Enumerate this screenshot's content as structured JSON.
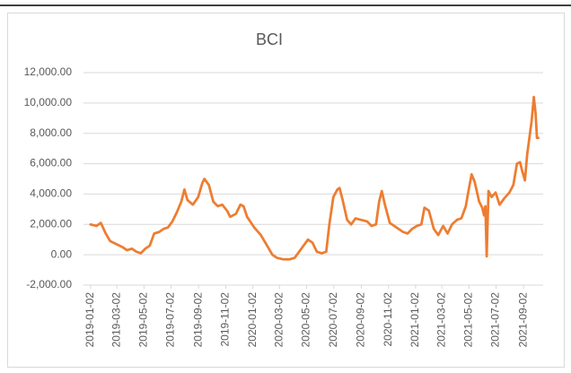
{
  "chart_data": {
    "type": "line",
    "title": "BCI",
    "x": [
      "2019-01-02",
      "2019-01-15",
      "2019-01-25",
      "2019-02-05",
      "2019-02-15",
      "2019-03-01",
      "2019-03-15",
      "2019-03-25",
      "2019-04-05",
      "2019-04-15",
      "2019-04-25",
      "2019-05-05",
      "2019-05-15",
      "2019-05-25",
      "2019-06-05",
      "2019-06-15",
      "2019-06-25",
      "2019-07-05",
      "2019-07-15",
      "2019-07-25",
      "2019-08-01",
      "2019-08-08",
      "2019-08-20",
      "2019-09-01",
      "2019-09-10",
      "2019-09-15",
      "2019-09-25",
      "2019-10-05",
      "2019-10-15",
      "2019-10-25",
      "2019-11-05",
      "2019-11-12",
      "2019-11-25",
      "2019-12-05",
      "2019-12-12",
      "2019-12-20",
      "2020-01-05",
      "2020-01-20",
      "2020-02-05",
      "2020-02-15",
      "2020-02-25",
      "2020-03-10",
      "2020-03-25",
      "2020-04-05",
      "2020-04-15",
      "2020-04-25",
      "2020-05-05",
      "2020-05-15",
      "2020-05-25",
      "2020-06-05",
      "2020-06-15",
      "2020-06-22",
      "2020-07-01",
      "2020-07-10",
      "2020-07-15",
      "2020-07-22",
      "2020-08-01",
      "2020-08-10",
      "2020-08-20",
      "2020-09-01",
      "2020-09-15",
      "2020-09-25",
      "2020-10-05",
      "2020-10-12",
      "2020-10-18",
      "2020-10-25",
      "2020-11-05",
      "2020-11-15",
      "2020-11-25",
      "2020-12-05",
      "2020-12-15",
      "2020-12-25",
      "2021-01-05",
      "2021-01-15",
      "2021-01-22",
      "2021-02-01",
      "2021-02-12",
      "2021-02-22",
      "2021-03-05",
      "2021-03-15",
      "2021-03-25",
      "2021-04-05",
      "2021-04-15",
      "2021-04-25",
      "2021-05-01",
      "2021-05-08",
      "2021-05-15",
      "2021-05-25",
      "2021-06-01",
      "2021-06-05",
      "2021-06-08",
      "2021-06-11",
      "2021-06-15",
      "2021-06-22",
      "2021-07-01",
      "2021-07-10",
      "2021-07-20",
      "2021-08-01",
      "2021-08-10",
      "2021-08-18",
      "2021-08-25",
      "2021-08-30",
      "2021-09-05",
      "2021-09-10",
      "2021-09-20",
      "2021-09-25",
      "2021-09-29",
      "2021-10-02",
      "2021-10-05"
    ],
    "series": [
      {
        "name": "BCI",
        "color": "#ed7d31",
        "values": [
          2000,
          1900,
          2100,
          1400,
          900,
          700,
          500,
          300,
          400,
          200,
          100,
          400,
          600,
          1400,
          1500,
          1700,
          1800,
          2200,
          2800,
          3500,
          4300,
          3600,
          3300,
          3800,
          4700,
          5000,
          4600,
          3500,
          3200,
          3300,
          2900,
          2500,
          2700,
          3300,
          3200,
          2500,
          1800,
          1300,
          500,
          0,
          -200,
          -300,
          -300,
          -200,
          200,
          600,
          1000,
          800,
          200,
          100,
          200,
          2000,
          3800,
          4300,
          4400,
          3600,
          2300,
          2000,
          2400,
          2300,
          2200,
          1900,
          2000,
          3500,
          4200,
          3300,
          2100,
          1900,
          1700,
          1500,
          1400,
          1700,
          1900,
          2000,
          3100,
          2900,
          1700,
          1300,
          1900,
          1400,
          2000,
          2300,
          2400,
          3200,
          4200,
          5300,
          4800,
          3500,
          3100,
          2600,
          3200,
          -100,
          4200,
          3800,
          4100,
          3300,
          3700,
          4100,
          4600,
          6000,
          6100,
          5500,
          4900,
          6600,
          8800,
          10400,
          9300,
          7700,
          7700
        ]
      }
    ],
    "xlim": [
      "2018-12-17",
      "2021-10-16"
    ],
    "xticks": [
      "2019-01-02",
      "2019-03-02",
      "2019-05-02",
      "2019-07-02",
      "2019-09-02",
      "2019-11-02",
      "2020-01-02",
      "2020-03-02",
      "2020-05-02",
      "2020-07-02",
      "2020-09-02",
      "2020-11-02",
      "2021-01-02",
      "2021-03-02",
      "2021-05-02",
      "2021-07-02",
      "2021-09-02"
    ],
    "ylim": [
      -2000,
      12000
    ],
    "yticks": [
      {
        "value": -2000,
        "label": "-2,000.00"
      },
      {
        "value": 0,
        "label": "0.00"
      },
      {
        "value": 2000,
        "label": "2,000.00"
      },
      {
        "value": 4000,
        "label": "4,000.00"
      },
      {
        "value": 6000,
        "label": "6,000.00"
      },
      {
        "value": 8000,
        "label": "8,000.00"
      },
      {
        "value": 10000,
        "label": "10,000.00"
      },
      {
        "value": 12000,
        "label": "12,000.00"
      }
    ],
    "grid": true
  }
}
